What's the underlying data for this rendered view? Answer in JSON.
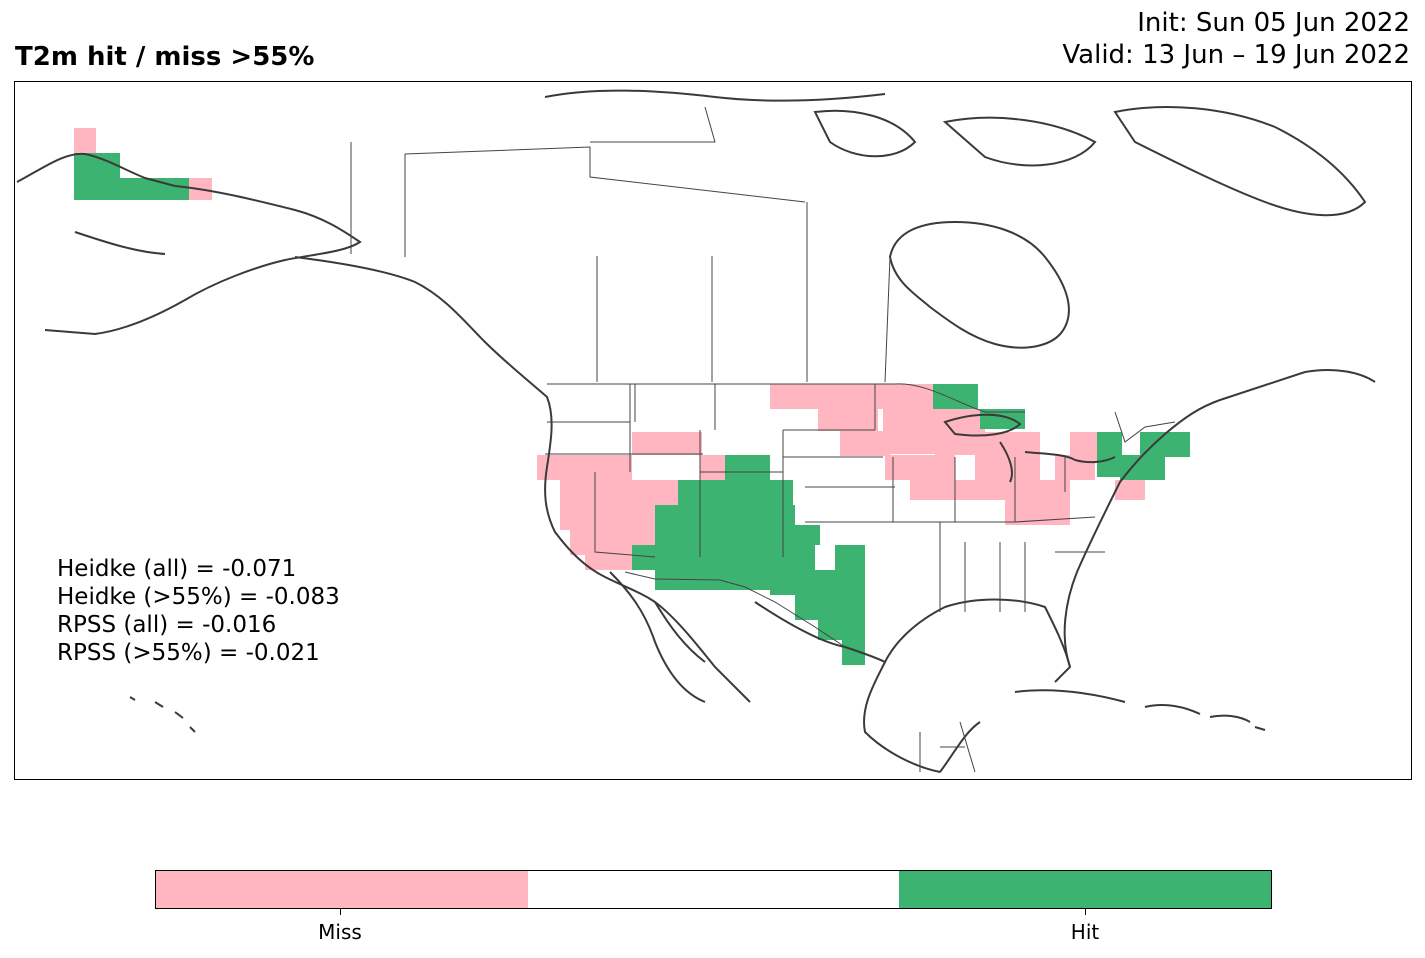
{
  "title": "T2m hit / miss  >55%",
  "init_label": "Init: Sun 05 Jun 2022",
  "valid_label": "Valid: 13 Jun – 19 Jun 2022",
  "stats": [
    "Heidke (all) = -0.071",
    "Heidke (>55%) = -0.083",
    "RPSS (all) = -0.016",
    "RPSS (>55%) = -0.021"
  ],
  "colors": {
    "miss": "#ffb6c1",
    "neutral": "#ffffff",
    "hit": "#3cb371",
    "coast": "#3a3a3a"
  },
  "colorbar": {
    "labels": [
      "Miss",
      "Hit"
    ]
  }
}
